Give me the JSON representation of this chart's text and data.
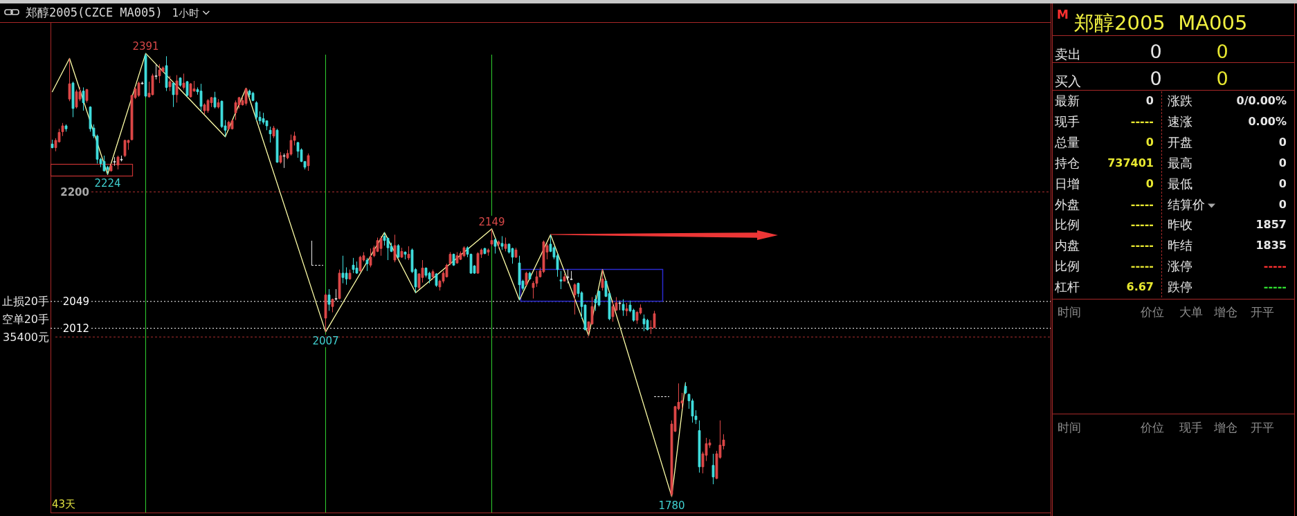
{
  "chart_data": [
    {
      "type": "candlestick",
      "title": "郑醇2005(CZCE MA005)",
      "subtitle": "1小时",
      "categories": [
        null,
        null,
        null,
        null,
        null,
        null,
        null,
        null,
        null,
        null,
        null,
        null,
        null,
        null,
        null,
        null,
        null,
        null,
        null,
        null,
        null,
        null,
        null,
        null,
        null,
        null,
        null,
        null,
        null,
        null,
        null,
        null,
        null,
        null,
        null,
        null,
        null,
        null,
        null,
        null,
        null,
        null,
        null,
        null,
        null,
        null,
        null,
        null,
        null,
        null,
        null,
        null,
        null,
        null,
        null,
        null,
        null,
        null,
        null,
        null,
        null,
        null,
        null,
        null,
        null,
        null,
        null,
        null,
        null,
        null,
        null,
        null,
        null,
        null,
        null,
        null,
        null,
        null,
        null,
        null,
        null,
        null,
        null,
        null,
        null,
        null,
        null,
        null,
        null,
        null,
        null,
        null,
        null,
        null,
        null,
        null,
        null,
        null,
        null,
        null,
        null,
        null,
        null,
        null,
        null,
        null,
        null,
        null,
        null,
        null,
        null,
        null,
        null,
        null,
        null,
        null,
        null,
        null,
        null,
        null,
        null,
        null,
        null,
        null,
        null,
        null,
        null,
        null,
        null,
        null,
        null,
        null,
        null,
        null,
        null,
        null,
        null,
        null,
        null,
        null,
        null,
        null,
        null,
        null,
        null,
        null,
        null,
        null,
        null,
        null,
        null,
        null,
        null,
        null,
        null,
        null,
        null,
        null,
        null,
        null,
        null,
        null,
        null,
        null,
        null,
        null,
        null,
        null,
        null,
        null,
        null,
        null,
        null,
        null,
        null,
        null,
        null,
        null,
        null,
        null,
        null,
        null,
        null,
        null,
        null,
        null,
        null,
        null,
        null,
        null,
        null,
        null,
        null,
        null,
        null
      ],
      "ohlc": [
        [
          2266,
          2272,
          2260,
          2261
        ],
        [
          2261,
          2274,
          2256,
          2271
        ],
        [
          2269,
          2287,
          2268,
          2282
        ],
        [
          2283,
          2295,
          2277,
          2291
        ],
        [
          2291,
          2293,
          2283,
          2287
        ],
        [
          2328,
          2384,
          2325,
          2349
        ],
        [
          2350,
          2352,
          2303,
          2315
        ],
        [
          2317,
          2341,
          2315,
          2338
        ],
        [
          2328,
          2344,
          2325,
          2338
        ],
        [
          2339,
          2344,
          2312,
          2323
        ],
        [
          2326,
          2342,
          2323,
          2341
        ],
        [
          2317,
          2318,
          2283,
          2287
        ],
        [
          2288,
          2293,
          2274,
          2277
        ],
        [
          2277,
          2279,
          2239,
          2245
        ],
        [
          2245,
          2247,
          2234,
          2239
        ],
        [
          2242,
          2250,
          2228,
          2229
        ],
        [
          2234,
          2236,
          2224,
          2231
        ],
        [
          2229,
          2239,
          2228,
          2236
        ],
        [
          2242,
          2248,
          2236,
          2242
        ],
        [
          2237,
          2250,
          2231,
          2248
        ],
        [
          2245,
          2250,
          2242,
          2245
        ],
        [
          2250,
          2272,
          2248,
          2271
        ],
        [
          2268,
          2272,
          2258,
          2271
        ],
        [
          2272,
          2334,
          2271,
          2333
        ],
        [
          2330,
          2345,
          2328,
          2342
        ],
        [
          2333,
          2352,
          2331,
          2350
        ],
        [
          2350,
          2352,
          2348,
          2350
        ],
        [
          2388,
          2391,
          2330,
          2332
        ],
        [
          2331,
          2352,
          2330,
          2336
        ],
        [
          2334,
          2363,
          2333,
          2360
        ],
        [
          2360,
          2376,
          2355,
          2360
        ],
        [
          2360,
          2376,
          2350,
          2368
        ],
        [
          2366,
          2373,
          2365,
          2371
        ],
        [
          2374,
          2387,
          2339,
          2344
        ],
        [
          2345,
          2360,
          2339,
          2352
        ],
        [
          2350,
          2351,
          2317,
          2334
        ],
        [
          2334,
          2361,
          2323,
          2353
        ],
        [
          2357,
          2358,
          2345,
          2347
        ],
        [
          2344,
          2363,
          2341,
          2350
        ],
        [
          2352,
          2353,
          2331,
          2333
        ],
        [
          2331,
          2350,
          2330,
          2349
        ],
        [
          2339,
          2353,
          2338,
          2342
        ],
        [
          2341,
          2344,
          2334,
          2338
        ],
        [
          2339,
          2349,
          2311,
          2318
        ],
        [
          2312,
          2322,
          2307,
          2320
        ],
        [
          2312,
          2328,
          2309,
          2326
        ],
        [
          2323,
          2331,
          2317,
          2330
        ],
        [
          2330,
          2338,
          2315,
          2317
        ],
        [
          2317,
          2328,
          2315,
          2323
        ],
        [
          2325,
          2326,
          2288,
          2290
        ],
        [
          2291,
          2299,
          2276,
          2285
        ],
        [
          2287,
          2298,
          2285,
          2296
        ],
        [
          2287,
          2300,
          2286,
          2298
        ],
        [
          2309,
          2326,
          2299,
          2323
        ],
        [
          2320,
          2331,
          2315,
          2330
        ],
        [
          2320,
          2331,
          2319,
          2326
        ],
        [
          2322,
          2343,
          2319,
          2342
        ],
        [
          2339,
          2341,
          2331,
          2334
        ],
        [
          2336,
          2338,
          2325,
          2326
        ],
        [
          2323,
          2325,
          2298,
          2303
        ],
        [
          2303,
          2311,
          2293,
          2298
        ],
        [
          2301,
          2309,
          2293,
          2296
        ],
        [
          2298,
          2298,
          2285,
          2291
        ],
        [
          2285,
          2290,
          2268,
          2280
        ],
        [
          2277,
          2291,
          2274,
          2288
        ],
        [
          2285,
          2287,
          2240,
          2241
        ],
        [
          2241,
          2255,
          2239,
          2250
        ],
        [
          2250,
          2253,
          2233,
          2250
        ],
        [
          2247,
          2258,
          2245,
          2253
        ],
        [
          2252,
          2279,
          2250,
          2271
        ],
        [
          2271,
          2283,
          2264,
          2277
        ],
        [
          2268,
          2269,
          2247,
          2256
        ],
        [
          2258,
          2260,
          2241,
          2242
        ],
        [
          2242,
          2242,
          2231,
          2234
        ],
        [
          2236,
          2253,
          2229,
          2250
        ],
        null,
        null,
        null,
        null,
        [
          2026,
          2060,
          2007,
          2058
        ],
        [
          2058,
          2066,
          2036,
          2045
        ],
        [
          2042,
          2053,
          2034,
          2052
        ],
        [
          2053,
          2066,
          2050,
          2053
        ],
        [
          2053,
          2093,
          2052,
          2088
        ],
        [
          2088,
          2112,
          2074,
          2082
        ],
        [
          2088,
          2096,
          2072,
          2080
        ],
        [
          2080,
          2093,
          2079,
          2088
        ],
        [
          2099,
          2109,
          2088,
          2093
        ],
        [
          2095,
          2104,
          2087,
          2088
        ],
        [
          2091,
          2112,
          2090,
          2110
        ],
        [
          2106,
          2117,
          2104,
          2112
        ],
        [
          2106,
          2109,
          2091,
          2101
        ],
        [
          2099,
          2122,
          2096,
          2110
        ],
        [
          2112,
          2126,
          2110,
          2123
        ],
        [
          2118,
          2137,
          2117,
          2133
        ],
        [
          2122,
          2139,
          2112,
          2136
        ],
        [
          2139,
          2144,
          2126,
          2133
        ],
        [
          2136,
          2137,
          2106,
          2123
        ],
        [
          2125,
          2130,
          2117,
          2118
        ],
        [
          2106,
          2141,
          2103,
          2126
        ],
        [
          2126,
          2128,
          2109,
          2110
        ],
        [
          2110,
          2123,
          2109,
          2118
        ],
        [
          2117,
          2118,
          2107,
          2114
        ],
        [
          2109,
          2125,
          2106,
          2114
        ],
        [
          2120,
          2122,
          2088,
          2090
        ],
        [
          2093,
          2095,
          2061,
          2069
        ],
        [
          2068,
          2088,
          2066,
          2087
        ],
        [
          2082,
          2106,
          2075,
          2095
        ],
        [
          2095,
          2096,
          2082,
          2085
        ],
        [
          2088,
          2090,
          2074,
          2080
        ],
        [
          2083,
          2093,
          2079,
          2090
        ],
        [
          2087,
          2088,
          2069,
          2071
        ],
        [
          2069,
          2079,
          2064,
          2077
        ],
        [
          2077,
          2091,
          2074,
          2088
        ],
        [
          2083,
          2101,
          2082,
          2099
        ],
        [
          2101,
          2117,
          2099,
          2114
        ],
        [
          2114,
          2115,
          2098,
          2099
        ],
        [
          2102,
          2117,
          2101,
          2112
        ],
        [
          2107,
          2118,
          2106,
          2115
        ],
        [
          2112,
          2125,
          2110,
          2123
        ],
        [
          2123,
          2125,
          2110,
          2114
        ],
        [
          2114,
          2115,
          2087,
          2088
        ],
        [
          2098,
          2099,
          2087,
          2088
        ],
        [
          2088,
          2117,
          2087,
          2115
        ],
        [
          2114,
          2122,
          2109,
          2120
        ],
        [
          2122,
          2123,
          2114,
          2115
        ],
        [
          2117,
          2122,
          2112,
          2120
        ],
        [
          2128,
          2149,
          2125,
          2133
        ],
        [
          2134,
          2136,
          2115,
          2125
        ],
        [
          2128,
          2133,
          2122,
          2131
        ],
        [
          2129,
          2139,
          2120,
          2125
        ],
        [
          2122,
          2137,
          2118,
          2128
        ],
        [
          2128,
          2129,
          2115,
          2117
        ],
        [
          2122,
          2123,
          2101,
          2110
        ],
        [
          2110,
          2123,
          2109,
          2120
        ],
        [
          2102,
          2112,
          2051,
          2072
        ],
        [
          2077,
          2079,
          2064,
          2067
        ],
        [
          2072,
          2090,
          2071,
          2088
        ],
        [
          2088,
          2090,
          2079,
          2080
        ],
        [
          2068,
          2077,
          2053,
          2074
        ],
        [
          2074,
          2091,
          2069,
          2083
        ],
        [
          2083,
          2096,
          2082,
          2091
        ],
        [
          2090,
          2133,
          2088,
          2131
        ],
        [
          2117,
          2129,
          2107,
          2126
        ],
        [
          2128,
          2141,
          2117,
          2118
        ],
        [
          2123,
          2125,
          2107,
          2110
        ],
        [
          2112,
          2115,
          2083,
          2093
        ],
        [
          2079,
          2091,
          2066,
          2077
        ],
        [
          2077,
          2087,
          2077,
          2083
        ],
        [
          2083,
          2093,
          2074,
          2083
        ],
        [
          2080,
          2091,
          2079,
          2080
        ],
        [
          2058,
          2074,
          2031,
          2072
        ],
        [
          2074,
          2075,
          2055,
          2060
        ],
        [
          2061,
          2063,
          2025,
          2042
        ],
        [
          2044,
          2045,
          2009,
          2010
        ],
        [
          2009,
          2021,
          2002,
          2021
        ],
        [
          2018,
          2055,
          2017,
          2042
        ],
        [
          2052,
          2058,
          2036,
          2047
        ],
        [
          2063,
          2064,
          2042,
          2044
        ],
        [
          2068,
          2093,
          2064,
          2080
        ],
        [
          2077,
          2079,
          2055,
          2056
        ],
        [
          2060,
          2061,
          2023,
          2025
        ],
        [
          2028,
          2050,
          2021,
          2042
        ],
        [
          2037,
          2055,
          2036,
          2047
        ],
        [
          2047,
          2050,
          2037,
          2047
        ],
        [
          2045,
          2052,
          2029,
          2037
        ],
        [
          2036,
          2047,
          2029,
          2039
        ],
        [
          2044,
          2050,
          2034,
          2036
        ],
        [
          2037,
          2039,
          2021,
          2023
        ],
        [
          2023,
          2036,
          2018,
          2034
        ],
        [
          2033,
          2045,
          2031,
          2040
        ],
        [
          2025,
          2031,
          2008,
          2018
        ],
        [
          2023,
          2025,
          2009,
          2010
        ],
        [
          2012,
          2023,
          2004,
          2013
        ],
        [
          2013,
          2036,
          2012,
          2032
        ],
        null,
        null,
        null,
        null,
        [
          1783,
          1885,
          1780,
          1880
        ],
        [
          1870,
          1905,
          1869,
          1904
        ],
        [
          1901,
          1936,
          1899,
          1910
        ],
        [
          1909,
          1923,
          1901,
          1912
        ],
        [
          1932,
          1937,
          1921,
          1923
        ],
        [
          1921,
          1922,
          1901,
          1912
        ],
        [
          1912,
          1915,
          1882,
          1891
        ],
        [
          1891,
          1899,
          1880,
          1886
        ],
        [
          1871,
          1885,
          1813,
          1821
        ],
        [
          1821,
          1842,
          1812,
          1839
        ],
        [
          1837,
          1861,
          1829,
          1853
        ],
        [
          1851,
          1859,
          1847,
          1854
        ],
        [
          1823,
          1839,
          1797,
          1807
        ],
        [
          1805,
          1843,
          1804,
          1839
        ],
        [
          1834,
          1885,
          1832,
          1851
        ],
        [
          1850,
          1866,
          1845,
          1858
        ]
      ],
      "colors": [
        "#40e0e0",
        "#e04848",
        "#e04848",
        "#e04848",
        "#40e0e0",
        "#e04848",
        "#40e0e0",
        "#e04848",
        "#e04848",
        "#40e0e0",
        "#e04848",
        "#40e0e0",
        "#40e0e0",
        "#40e0e0",
        "#40e0e0",
        "#40e0e0",
        "#40e0e0",
        "#e04848",
        "#dddddd",
        "#e04848",
        "#dddddd",
        "#e04848",
        "#e04848",
        "#e04848",
        "#e04848",
        "#e04848",
        "#dddddd",
        "#40e0e0",
        "#e04848",
        "#e04848",
        "#dddddd",
        "#e04848",
        "#e04848",
        "#40e0e0",
        "#e04848",
        "#40e0e0",
        "#e04848",
        "#40e0e0",
        "#e04848",
        "#40e0e0",
        "#e04848",
        "#e04848",
        "#40e0e0",
        "#40e0e0",
        "#e04848",
        "#e04848",
        "#e04848",
        "#40e0e0",
        "#e04848",
        "#40e0e0",
        "#40e0e0",
        "#e04848",
        "#e04848",
        "#e04848",
        "#e04848",
        "#e04848",
        "#e04848",
        "#40e0e0",
        "#40e0e0",
        "#40e0e0",
        "#40e0e0",
        "#40e0e0",
        "#40e0e0",
        "#40e0e0",
        "#e04848",
        "#40e0e0",
        "#e04848",
        "#dddddd",
        "#e04848",
        "#e04848",
        "#e04848",
        "#40e0e0",
        "#40e0e0",
        "#40e0e0",
        "#e04848",
        null,
        null,
        null,
        null,
        "#e04848",
        "#40e0e0",
        "#e04848",
        "#dddddd",
        "#e04848",
        "#40e0e0",
        "#40e0e0",
        "#e04848",
        "#40e0e0",
        "#40e0e0",
        "#e04848",
        "#e04848",
        "#40e0e0",
        "#e04848",
        "#e04848",
        "#e04848",
        "#e04848",
        "#40e0e0",
        "#40e0e0",
        "#40e0e0",
        "#e04848",
        "#40e0e0",
        "#e04848",
        "#40e0e0",
        "#e04848",
        "#40e0e0",
        "#40e0e0",
        "#e04848",
        "#e04848",
        "#40e0e0",
        "#40e0e0",
        "#e04848",
        "#40e0e0",
        "#e04848",
        "#e04848",
        "#e04848",
        "#e04848",
        "#40e0e0",
        "#e04848",
        "#e04848",
        "#e04848",
        "#40e0e0",
        "#40e0e0",
        "#40e0e0",
        "#e04848",
        "#e04848",
        "#40e0e0",
        "#e04848",
        "#e04848",
        "#40e0e0",
        "#e04848",
        "#40e0e0",
        "#e04848",
        "#40e0e0",
        "#40e0e0",
        "#e04848",
        "#40e0e0",
        "#40e0e0",
        "#e04848",
        "#40e0e0",
        "#e04848",
        "#e04848",
        "#e04848",
        "#e04848",
        "#e04848",
        "#40e0e0",
        "#40e0e0",
        "#40e0e0",
        "#40e0e0",
        "#e04848",
        "#dddddd",
        "#dddddd",
        "#e04848",
        "#40e0e0",
        "#40e0e0",
        "#40e0e0",
        "#e04848",
        "#e04848",
        "#40e0e0",
        "#40e0e0",
        "#e04848",
        "#40e0e0",
        "#40e0e0",
        "#e04848",
        "#e04848",
        "#dddddd",
        "#40e0e0",
        "#e04848",
        "#40e0e0",
        "#40e0e0",
        "#e04848",
        "#e04848",
        "#40e0e0",
        "#40e0e0",
        "#e04848",
        "#e04848",
        null,
        null,
        null,
        null,
        "#e04848",
        "#e04848",
        "#e04848",
        "#e04848",
        "#40e0e0",
        "#40e0e0",
        "#40e0e0",
        "#40e0e0",
        "#40e0e0",
        "#e04848",
        "#e04848",
        "#e04848",
        "#40e0e0",
        "#e04848",
        "#e04848",
        "#e04848"
      ],
      "series": [
        {
          "type": "line",
          "color": "#ffffa8",
          "values": [
            2338,
            null,
            null,
            null,
            null,
            2384,
            null,
            null,
            null,
            null,
            null,
            null,
            null,
            null,
            null,
            null,
            2224,
            null,
            null,
            null,
            null,
            null,
            null,
            null,
            null,
            null,
            null,
            2391,
            null,
            null,
            null,
            null,
            null,
            null,
            null,
            null,
            null,
            null,
            null,
            null,
            null,
            null,
            null,
            null,
            null,
            null,
            null,
            null,
            null,
            null,
            2276,
            null,
            null,
            null,
            null,
            null,
            2343,
            null,
            null,
            null,
            null,
            null,
            null,
            null,
            null,
            null,
            null,
            null,
            null,
            null,
            null,
            null,
            null,
            null,
            null,
            null,
            null,
            null,
            null,
            2007,
            null,
            null,
            null,
            null,
            null,
            null,
            null,
            null,
            null,
            null,
            null,
            null,
            null,
            null,
            null,
            null,
            2144,
            null,
            null,
            null,
            null,
            null,
            null,
            null,
            null,
            2061,
            null,
            null,
            null,
            null,
            null,
            null,
            null,
            null,
            null,
            null,
            null,
            null,
            null,
            null,
            null,
            null,
            null,
            null,
            null,
            null,
            null,
            2149,
            null,
            null,
            null,
            null,
            null,
            null,
            null,
            2051,
            null,
            null,
            null,
            null,
            null,
            null,
            null,
            null,
            2141,
            null,
            null,
            null,
            null,
            null,
            null,
            null,
            null,
            null,
            null,
            2002,
            null,
            null,
            null,
            2093,
            null,
            null,
            null,
            null,
            null,
            null,
            null,
            null,
            null,
            null,
            null,
            null,
            null,
            null,
            null,
            null,
            null,
            null,
            null,
            1780,
            null,
            null,
            null,
            1937,
            null,
            null,
            null,
            null,
            null,
            null,
            null,
            null,
            null,
            null,
            null
          ]
        }
      ],
      "ylim": [
        1758,
        2434
      ],
      "yticks": [
        2200,
        2049,
        2012,
        {
          "value": 2000,
          "label": null
        }
      ],
      "grid": "y",
      "tick_labels": "y",
      "ref_lines": [
        {
          "axis": "y",
          "value": 2049,
          "label": "止损20手",
          "color": "#ffffff",
          "line_style": "dotted"
        },
        {
          "axis": "y",
          "value": 2012,
          "label": "空单20手",
          "color": "#ffffff",
          "line_style": "dotted"
        }
      ],
      "annotations": [
        {
          "text": "2391",
          "y": 2391
        },
        {
          "text": "2224",
          "y": 2224
        },
        {
          "text": "2149",
          "y": 2149
        },
        {
          "text": "2007",
          "y": 2007
        },
        {
          "text": "1780",
          "y": 1780
        },
        "35400元",
        "43天"
      ]
    },
    {
      "type": "other",
      "title": "郑醇2005  MA005",
      "annotations": [
        "M",
        "卖出",
        "0",
        "0",
        "买入",
        "0",
        "0",
        "最新",
        "0",
        "涨跌",
        "0/0.00%",
        "现手",
        "-----",
        "速涨",
        "0.00%",
        "总量",
        "0",
        "开盘",
        "0",
        "持仓",
        "737401",
        "最高",
        "0",
        "日增",
        "0",
        "最低",
        "0",
        "外盘",
        "-----",
        "结算价",
        "0",
        "比例",
        "-----",
        "昨收",
        "1857",
        "内盘",
        "-----",
        "昨结",
        "1835",
        "比例",
        "-----",
        "涨停",
        "-----",
        "杠杆",
        "6.67",
        "跌停",
        "-----",
        "时间",
        "价位",
        "大单",
        "增仓",
        "开平",
        "时间",
        "价位",
        "现手",
        "增仓",
        "开平"
      ]
    }
  ]
}
